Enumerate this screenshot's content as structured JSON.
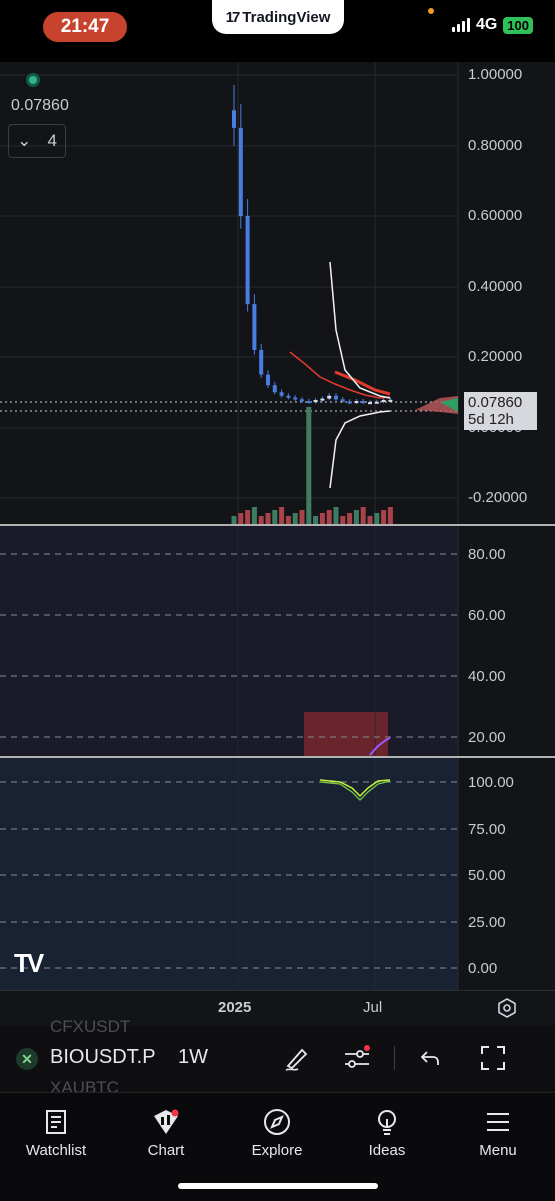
{
  "status_bar": {
    "time": "21:47",
    "app_pill": "TradingView",
    "network": "4G",
    "battery": "100"
  },
  "chart": {
    "last_price_label": "0.07860",
    "collapse_count": "4",
    "price_tag": {
      "price": "0.07860",
      "countdown": "5d 12h"
    },
    "price_axis": [
      "1.00000",
      "0.80000",
      "0.60000",
      "0.40000",
      "0.20000",
      "0.00000",
      "-0.20000"
    ],
    "rsi_axis": [
      "80.00",
      "60.00",
      "40.00",
      "20.00"
    ],
    "stoch_axis": [
      "100.00",
      "75.00",
      "50.00",
      "25.00",
      "0.00"
    ],
    "time_axis": [
      "2025",
      "Jul"
    ],
    "watermark": "TV"
  },
  "chart_data": {
    "type": "candlestick",
    "symbol": "BIOUSDT",
    "interval": "1W",
    "y_range": [
      -0.2,
      1.0
    ],
    "approx_closes": [
      0.85,
      0.6,
      0.35,
      0.22,
      0.15,
      0.12,
      0.1,
      0.09,
      0.085,
      0.08,
      0.075,
      0.072,
      0.078,
      0.082,
      0.09,
      0.08,
      0.074,
      0.07,
      0.075,
      0.07,
      0.072,
      0.073,
      0.078,
      0.0786
    ],
    "last_value": 0.0786
  },
  "toolbar": {
    "symbol": "BIOUSDT.P",
    "interval": "1W",
    "ghost_above": "CFXUSDT",
    "ghost_below": "XAUBTC"
  },
  "tabs": [
    {
      "label": "Watchlist",
      "icon": "watchlist-icon"
    },
    {
      "label": "Chart",
      "icon": "chart-icon"
    },
    {
      "label": "Explore",
      "icon": "compass-icon"
    },
    {
      "label": "Ideas",
      "icon": "lightbulb-icon"
    },
    {
      "label": "Menu",
      "icon": "menu-icon"
    }
  ],
  "colors": {
    "accent": "#2962ff",
    "up": "#26a69a",
    "down": "#ef5350",
    "candle_blue": "#4a7de0"
  }
}
